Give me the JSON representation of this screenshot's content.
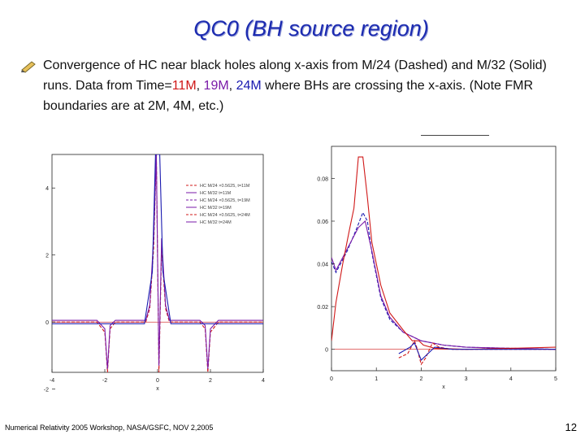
{
  "slide": {
    "title": "QC0 (BH source region)",
    "bullet_parts": {
      "intro": "Convergence of HC near black holes along x-axis from M/24 (Dashed) and M/32 (Solid) runs. Data from Time=",
      "t11": "11M",
      "sep1": ", ",
      "t19": "19M",
      "sep2": ", ",
      "t24": "24M",
      "outro": " where BHs are crossing the x-axis. (Note FMR boundaries are at 2M, 4M, etc.)"
    },
    "footer": "Numerical Relativity 2005 Workshop, NASA/GSFC, NOV 2,2005",
    "page_number": "12",
    "colors": {
      "title": "#1c2bb0",
      "t11": "#d01818",
      "t19": "#7a1aa8",
      "t24": "#1a1ab0"
    }
  },
  "chart_data": [
    {
      "type": "line",
      "xlabel": "x",
      "ylabel": "",
      "xlim": [
        -4,
        4
      ],
      "ylim": [
        -1.5,
        5
      ],
      "x_ticks": [
        "-4",
        "-2",
        "0",
        "2",
        "4"
      ],
      "y_ticks": [
        "4",
        "2",
        "0",
        "-2"
      ],
      "legend": {
        "placement": "top-right",
        "entries": [
          "HC M/24 ×0.5625, t=11M",
          "HC M/32 t=11M",
          "HC M/24 ×0.5625, t=19M",
          "HC M/32 t=19M",
          "HC M/24 ×0.5625, t=24M",
          "HC M/32 t=24M"
        ]
      },
      "series": [
        {
          "color": "#d01818",
          "dashed": true,
          "points": [
            [
              -4,
              0
            ],
            [
              -2.3,
              0
            ],
            [
              -2,
              -0.3
            ],
            [
              -1.9,
              -1.5
            ],
            [
              -1.8,
              -0.2
            ],
            [
              -1.6,
              0
            ],
            [
              -0.45,
              0
            ],
            [
              -0.3,
              0.4
            ],
            [
              -0.15,
              2.2
            ],
            [
              -0.05,
              5
            ],
            [
              0.05,
              -1.5
            ],
            [
              0.15,
              2.2
            ],
            [
              0.3,
              0.4
            ],
            [
              0.45,
              0
            ],
            [
              1.6,
              0
            ],
            [
              1.8,
              -0.2
            ],
            [
              1.9,
              -1.5
            ],
            [
              2,
              -0.3
            ],
            [
              2.3,
              0
            ],
            [
              4,
              0
            ]
          ]
        },
        {
          "color": "#7a1aa8",
          "dashed": false,
          "points": [
            [
              -4,
              0.05
            ],
            [
              -2.3,
              0.05
            ],
            [
              -2,
              -0.2
            ],
            [
              -1.9,
              -1.4
            ],
            [
              -1.8,
              -0.1
            ],
            [
              -1.6,
              0.05
            ],
            [
              -0.45,
              0.05
            ],
            [
              -0.3,
              0.5
            ],
            [
              -0.15,
              2.5
            ],
            [
              -0.05,
              5
            ],
            [
              0.05,
              -1.3
            ],
            [
              0.15,
              2.5
            ],
            [
              0.3,
              0.5
            ],
            [
              0.45,
              0.05
            ],
            [
              1.6,
              0.05
            ],
            [
              1.8,
              -0.1
            ],
            [
              1.9,
              -1.4
            ],
            [
              2,
              -0.2
            ],
            [
              2.3,
              0.05
            ],
            [
              4,
              0.05
            ]
          ]
        },
        {
          "color": "#1a1ab0",
          "dashed": false,
          "points": [
            [
              -4,
              -0.05
            ],
            [
              -0.5,
              -0.05
            ],
            [
              -0.2,
              1.5
            ],
            [
              -0.08,
              5
            ],
            [
              0.08,
              5
            ],
            [
              0.2,
              1.5
            ],
            [
              0.5,
              -0.05
            ],
            [
              4,
              -0.05
            ]
          ]
        }
      ]
    },
    {
      "type": "line",
      "xlabel": "x",
      "ylabel": "",
      "xlim": [
        0,
        5
      ],
      "ylim": [
        -0.01,
        0.095
      ],
      "x_ticks": [
        "0",
        "1",
        "2",
        "3",
        "4",
        "5"
      ],
      "y_ticks": [
        "0.08",
        "0.06",
        "0.04",
        "0.02",
        "0"
      ],
      "series": [
        {
          "color": "#1a1ab0",
          "dashed": true,
          "points": [
            [
              0,
              0.041
            ],
            [
              0.1,
              0.036
            ],
            [
              0.2,
              0.04
            ],
            [
              0.35,
              0.046
            ],
            [
              0.55,
              0.056
            ],
            [
              0.7,
              0.064
            ],
            [
              0.8,
              0.06
            ],
            [
              0.9,
              0.045
            ],
            [
              1.1,
              0.024
            ],
            [
              1.3,
              0.014
            ],
            [
              1.6,
              0.008
            ],
            [
              2,
              0.004
            ],
            [
              2.5,
              0.002
            ],
            [
              3,
              0.001
            ],
            [
              4,
              0.0005
            ],
            [
              5,
              0
            ]
          ]
        },
        {
          "color": "#7a1aa8",
          "dashed": false,
          "points": [
            [
              0,
              0.043
            ],
            [
              0.1,
              0.037
            ],
            [
              0.25,
              0.043
            ],
            [
              0.4,
              0.049
            ],
            [
              0.6,
              0.057
            ],
            [
              0.75,
              0.06
            ],
            [
              0.9,
              0.046
            ],
            [
              1.1,
              0.025
            ],
            [
              1.3,
              0.015
            ],
            [
              1.6,
              0.008
            ],
            [
              2,
              0.004
            ],
            [
              2.5,
              0.002
            ],
            [
              3,
              0.001
            ],
            [
              4,
              0.0005
            ],
            [
              5,
              0
            ]
          ]
        },
        {
          "color": "#d01818",
          "dashed": false,
          "points": [
            [
              0,
              0.004
            ],
            [
              0.1,
              0.022
            ],
            [
              0.25,
              0.04
            ],
            [
              0.4,
              0.056
            ],
            [
              0.5,
              0.066
            ],
            [
              0.6,
              0.09
            ],
            [
              0.7,
              0.09
            ],
            [
              0.8,
              0.071
            ],
            [
              0.9,
              0.05
            ],
            [
              1.1,
              0.03
            ],
            [
              1.3,
              0.017
            ],
            [
              1.6,
              0.009
            ],
            [
              1.8,
              0.004
            ],
            [
              1.95,
              0.004
            ],
            [
              2.05,
              0.002
            ],
            [
              2.3,
              0.0005
            ],
            [
              3,
              0
            ],
            [
              4,
              0.0005
            ],
            [
              5,
              0.001
            ]
          ]
        },
        {
          "color": "#d01818",
          "dashed": true,
          "points": [
            [
              1.5,
              -0.004
            ],
            [
              1.7,
              -0.002
            ],
            [
              1.8,
              0.002
            ],
            [
              1.85,
              0.004
            ],
            [
              1.9,
              0.001
            ],
            [
              2.0,
              -0.007
            ],
            [
              2.1,
              -0.004
            ],
            [
              2.25,
              0.003
            ],
            [
              2.4,
              0.001
            ],
            [
              2.7,
              0
            ],
            [
              5,
              0
            ]
          ]
        },
        {
          "color": "#1a1ab0",
          "dashed": false,
          "points": [
            [
              1.5,
              -0.002
            ],
            [
              1.75,
              0.001
            ],
            [
              1.85,
              0.003
            ],
            [
              2.0,
              -0.005
            ],
            [
              2.15,
              -0.002
            ],
            [
              2.3,
              0.001
            ],
            [
              2.7,
              0
            ],
            [
              5,
              0
            ]
          ]
        }
      ]
    }
  ]
}
